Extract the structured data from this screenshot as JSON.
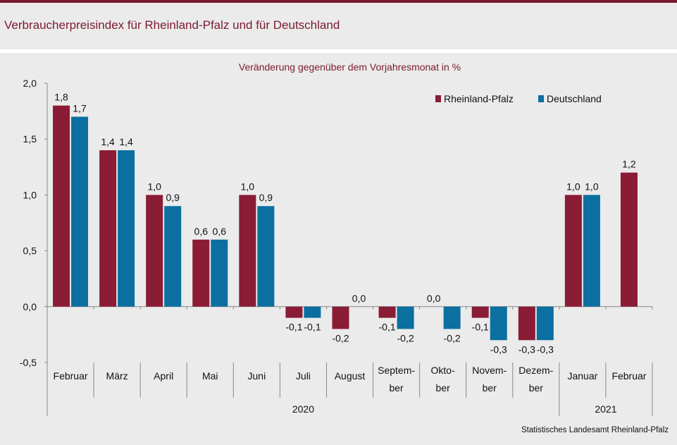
{
  "title": "Verbraucherpreisindex für Rheinland-Pfalz und für Deutschland",
  "source": "Statistisches Landesamt Rheinland-Pfalz",
  "colors": {
    "rlp": "#8a1c35",
    "de": "#0b6fa0",
    "accent": "#7a1a30"
  },
  "chart_data": {
    "type": "bar",
    "title": "Veränderung gegenüber dem Vorjahresmonat in %",
    "categories": [
      [
        "Februar"
      ],
      [
        "März"
      ],
      [
        "April"
      ],
      [
        "Mai"
      ],
      [
        "Juni"
      ],
      [
        "Juli"
      ],
      [
        "August"
      ],
      [
        "Septem-",
        "ber"
      ],
      [
        "Okto-",
        "ber"
      ],
      [
        "Novem-",
        "ber"
      ],
      [
        "Dezem-",
        "ber"
      ],
      [
        "Januar"
      ],
      [
        "Februar"
      ]
    ],
    "years": [
      {
        "label": "2020",
        "from": 0,
        "to": 10
      },
      {
        "label": "2021",
        "from": 11,
        "to": 12
      }
    ],
    "series": [
      {
        "name": "Rheinland-Pfalz",
        "values": [
          1.8,
          1.4,
          1.0,
          0.6,
          1.0,
          -0.1,
          -0.2,
          -0.1,
          0.0,
          -0.1,
          -0.3,
          1.0,
          1.2
        ]
      },
      {
        "name": "Deutschland",
        "values": [
          1.7,
          1.4,
          0.9,
          0.6,
          0.9,
          -0.1,
          0.0,
          -0.2,
          -0.2,
          -0.3,
          -0.3,
          1.0,
          null
        ]
      }
    ],
    "ylim": [
      -0.5,
      2.0
    ],
    "yticks": [
      "2,0",
      "1,5",
      "1,0",
      "0,5",
      "0,0",
      "-0,5"
    ],
    "legend": "top-right",
    "grid": false
  }
}
